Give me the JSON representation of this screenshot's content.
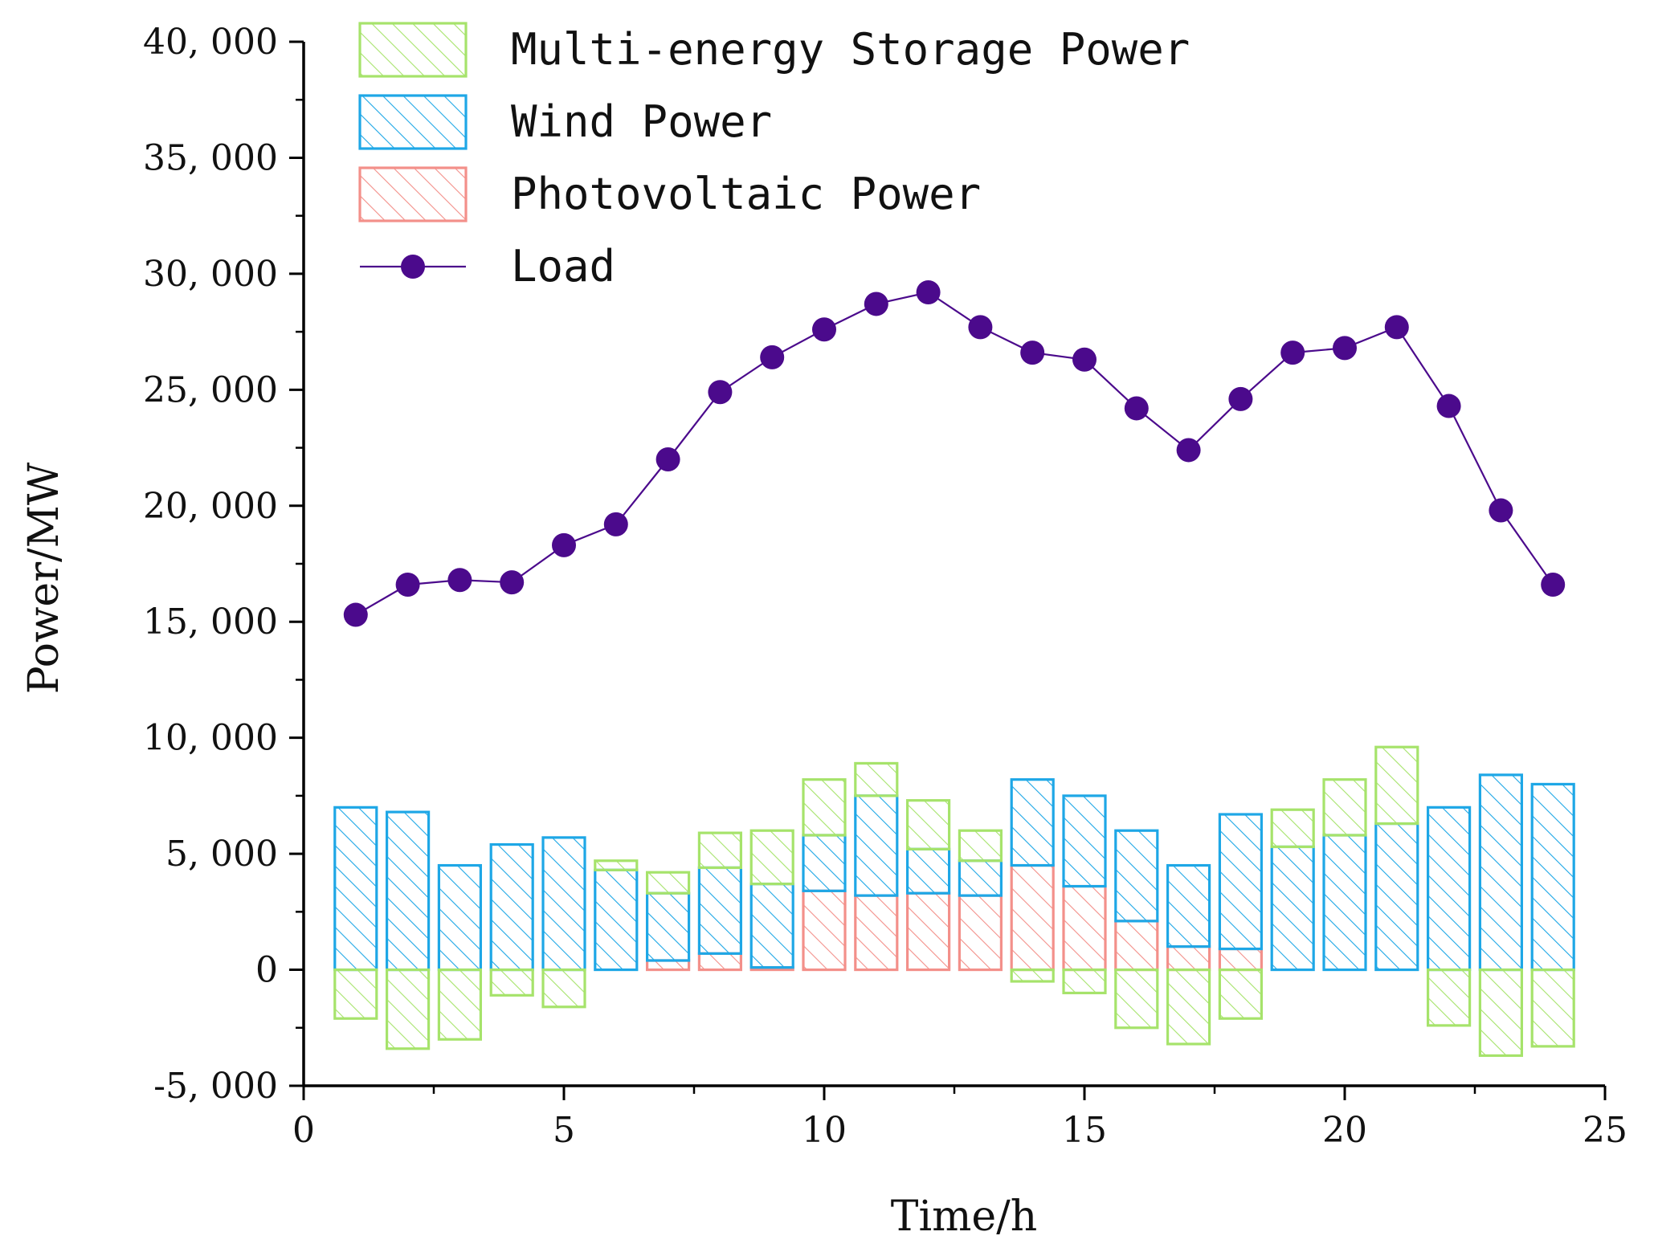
{
  "chart_data": {
    "type": "bar",
    "xlabel": "Time/h",
    "ylabel": "Power/MW",
    "xlim": [
      0,
      25
    ],
    "ylim": [
      -5000,
      40000
    ],
    "x_ticks": [
      0,
      5,
      10,
      15,
      20,
      25
    ],
    "x_tick_labels": [
      "0",
      "5",
      "10",
      "15",
      "20",
      "25"
    ],
    "y_ticks": [
      -5000,
      0,
      5000,
      10000,
      15000,
      20000,
      25000,
      30000,
      35000,
      40000
    ],
    "y_tick_labels": [
      "-5, 000",
      "0",
      "5, 000",
      "10, 000",
      "15, 000",
      "20, 000",
      "25, 000",
      "30, 000",
      "35, 000",
      "40, 000"
    ],
    "x": [
      1,
      2,
      3,
      4,
      5,
      6,
      7,
      8,
      9,
      10,
      11,
      12,
      13,
      14,
      15,
      16,
      17,
      18,
      19,
      20,
      21,
      22,
      23,
      24
    ],
    "legend_position": "top-left",
    "series": [
      {
        "name": "Multi-energy Storage Power",
        "kind": "bar",
        "color": "#a6e36b",
        "values": [
          -2100,
          -3400,
          -3000,
          -1100,
          -1600,
          400,
          900,
          1500,
          2300,
          2400,
          1400,
          2100,
          1300,
          -500,
          -1000,
          -2500,
          -3200,
          -2100,
          1600,
          2400,
          3300,
          -2400,
          -3700,
          -3300
        ]
      },
      {
        "name": "Wind Power",
        "kind": "bar",
        "color": "#1ea7e6",
        "values": [
          7000,
          6800,
          4500,
          5400,
          5700,
          4300,
          2900,
          3700,
          3600,
          2400,
          4300,
          1900,
          1500,
          3700,
          3900,
          3900,
          3500,
          5800,
          5300,
          5800,
          6300,
          7000,
          8400,
          8000
        ]
      },
      {
        "name": "Photovoltaic Power",
        "kind": "bar",
        "color": "#f3908a",
        "values": [
          0,
          0,
          0,
          0,
          0,
          0,
          400,
          700,
          100,
          3400,
          3200,
          3300,
          3200,
          4500,
          3600,
          2100,
          1000,
          900,
          0,
          0,
          0,
          0,
          0,
          0
        ]
      },
      {
        "name": "Load",
        "kind": "line",
        "color": "#4b0a8c",
        "values": [
          15300,
          16600,
          16800,
          16700,
          18300,
          19200,
          22000,
          24900,
          26400,
          27600,
          28700,
          29200,
          27700,
          26600,
          26300,
          24200,
          22400,
          24600,
          26600,
          26800,
          27700,
          24300,
          19800,
          16600
        ]
      }
    ]
  }
}
